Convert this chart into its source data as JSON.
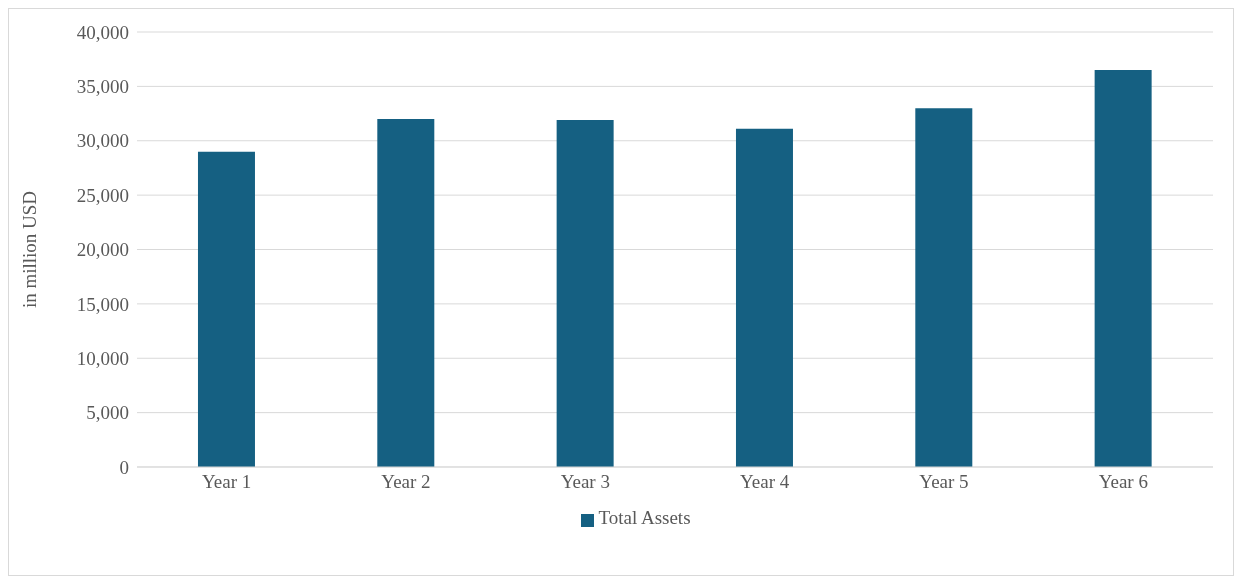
{
  "chart_data": {
    "type": "bar",
    "ylabel": "in million USD",
    "categories": [
      "Year 1",
      "Year 2",
      "Year 3",
      "Year 4",
      "Year 5",
      "Year 6"
    ],
    "series": [
      {
        "name": "Total Assets",
        "color": "#156082",
        "values": [
          29000,
          32000,
          31900,
          31100,
          33000,
          36500
        ]
      }
    ],
    "ylim": [
      0,
      40000
    ],
    "yticks": [
      0,
      {
        "value": 5000,
        "label": "5,000"
      },
      {
        "value": 10000,
        "label": "10,000"
      },
      {
        "value": 15000,
        "label": "15,000"
      },
      {
        "value": 20000,
        "label": "20,000"
      },
      {
        "value": 25000,
        "label": "25,000"
      },
      {
        "value": 30000,
        "label": "30,000"
      },
      {
        "value": 35000,
        "label": "35,000"
      },
      {
        "value": 40000,
        "label": "40,000"
      }
    ],
    "grid": "y",
    "legend": "bottom"
  }
}
